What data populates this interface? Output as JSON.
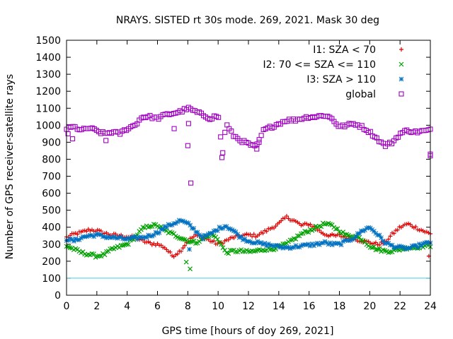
{
  "chart_data": {
    "type": "scatter",
    "title": "NRAYS. SISTED rt 30s mode. 269, 2021. Mask 30 deg",
    "xlabel": "GPS time [hours of doy 269, 2021]",
    "ylabel": "Number of GPS receiver-satellite rays",
    "xlim": [
      0,
      24
    ],
    "ylim": [
      0,
      1500
    ],
    "xticks": [
      0,
      2,
      4,
      6,
      8,
      10,
      12,
      14,
      16,
      18,
      20,
      22,
      24
    ],
    "yticks": [
      0,
      100,
      200,
      300,
      400,
      500,
      600,
      700,
      800,
      900,
      1000,
      1100,
      1200,
      1300,
      1400,
      1500
    ],
    "reference_line": {
      "y": 100,
      "color": "#40d0e0"
    },
    "legend_position": "top-right",
    "series": [
      {
        "name": "I1: SZA < 70",
        "marker": "+",
        "color": "#e00000",
        "x": [
          0,
          0.5,
          1,
          1.5,
          2,
          2.5,
          3,
          3.5,
          4,
          4.5,
          5,
          5.5,
          6,
          6.5,
          7,
          7.5,
          8,
          8.5,
          9,
          9.5,
          10,
          10.5,
          11,
          11.5,
          12,
          12.5,
          13,
          13.5,
          14,
          14.5,
          15,
          15.5,
          16,
          16.5,
          17,
          17.5,
          18,
          18.5,
          19,
          19.5,
          20,
          20.5,
          21,
          21.5,
          22,
          22.5,
          23,
          23.5,
          24
        ],
        "y": [
          340,
          360,
          370,
          385,
          380,
          365,
          355,
          350,
          345,
          340,
          320,
          305,
          300,
          280,
          230,
          260,
          320,
          350,
          340,
          320,
          300,
          320,
          340,
          350,
          355,
          350,
          370,
          395,
          420,
          460,
          440,
          410,
          420,
          390,
          360,
          350,
          350,
          340,
          330,
          320,
          310,
          300,
          310,
          360,
          400,
          420,
          400,
          380,
          360
        ]
      },
      {
        "name": "I2: 70 <= SZA <= 110",
        "marker": "x",
        "color": "#00a000",
        "x": [
          0,
          0.5,
          1,
          1.5,
          2,
          2.5,
          3,
          3.5,
          4,
          4.5,
          5,
          5.5,
          6,
          6.5,
          7,
          7.5,
          8,
          8.5,
          9,
          9.5,
          10,
          10.5,
          11,
          11.5,
          12,
          12.5,
          13,
          13.5,
          14,
          14.5,
          15,
          15.5,
          16,
          16.5,
          17,
          17.5,
          18,
          18.5,
          19,
          19.5,
          20,
          20.5,
          21,
          21.5,
          22,
          22.5,
          23,
          23.5,
          24
        ],
        "y": [
          290,
          270,
          250,
          240,
          230,
          240,
          270,
          285,
          300,
          340,
          390,
          410,
          410,
          380,
          360,
          340,
          320,
          310,
          330,
          360,
          330,
          250,
          260,
          260,
          255,
          260,
          270,
          270,
          285,
          300,
          330,
          360,
          380,
          400,
          420,
          410,
          380,
          350,
          350,
          330,
          290,
          270,
          260,
          260,
          270,
          280,
          280,
          290,
          290
        ]
      },
      {
        "name": "I3: SZA > 110",
        "marker": "*",
        "color": "#0070c0",
        "x": [
          0,
          0.5,
          1,
          1.5,
          2,
          2.5,
          3,
          3.5,
          4,
          4.5,
          5,
          5.5,
          6,
          6.5,
          7,
          7.5,
          8,
          8.5,
          9,
          9.5,
          10,
          10.5,
          11,
          11.5,
          12,
          12.5,
          13,
          13.5,
          14,
          14.5,
          15,
          15.5,
          16,
          16.5,
          17,
          17.5,
          18,
          18.5,
          19,
          19.5,
          20,
          20.5,
          21,
          21.5,
          22,
          22.5,
          23,
          23.5,
          24
        ],
        "y": [
          330,
          320,
          340,
          350,
          355,
          345,
          340,
          335,
          330,
          335,
          340,
          350,
          370,
          400,
          420,
          440,
          420,
          380,
          340,
          360,
          390,
          410,
          380,
          340,
          320,
          310,
          300,
          295,
          285,
          280,
          285,
          290,
          295,
          300,
          310,
          300,
          300,
          320,
          340,
          380,
          400,
          360,
          310,
          290,
          280,
          275,
          285,
          300,
          310
        ]
      },
      {
        "name": "global",
        "marker": "square",
        "color": "#a000c0",
        "x": [
          0,
          0.5,
          1,
          1.5,
          2,
          2.5,
          3,
          3.5,
          4,
          4.5,
          5,
          5.5,
          6,
          6.5,
          7,
          7.5,
          8,
          8.5,
          9,
          9.5,
          10,
          10.3,
          10.5,
          11,
          11.5,
          12,
          12.5,
          13,
          13.5,
          14,
          14.5,
          15,
          15.5,
          16,
          16.5,
          17,
          17.5,
          18,
          18.5,
          19,
          19.5,
          20,
          20.5,
          21,
          21.5,
          22,
          22.5,
          23,
          23.5,
          24
        ],
        "y": [
          980,
          990,
          970,
          985,
          965,
          950,
          960,
          950,
          980,
          1000,
          1050,
          1050,
          1040,
          1060,
          1070,
          1080,
          1100,
          1080,
          1060,
          1040,
          1060,
          830,
          1010,
          940,
          910,
          890,
          870,
          970,
          990,
          1010,
          1030,
          1030,
          1040,
          1050,
          1050,
          1060,
          1040,
          990,
          1000,
          1010,
          990,
          960,
          920,
          880,
          900,
          950,
          970,
          960,
          965,
          970
        ]
      }
    ],
    "outliers": {
      "global": [
        [
          0.1,
          950
        ],
        [
          0.4,
          920
        ],
        [
          2.6,
          910
        ],
        [
          7.1,
          980
        ],
        [
          8.05,
          1010
        ],
        [
          8.0,
          880
        ],
        [
          8.2,
          660
        ],
        [
          10.25,
          810
        ],
        [
          12.55,
          860
        ],
        [
          12.7,
          900
        ],
        [
          24,
          820
        ],
        [
          24,
          830
        ]
      ],
      "I2: 70 <= SZA <= 110": [
        [
          7.9,
          195
        ],
        [
          8.15,
          155
        ]
      ],
      "I3: SZA > 110": [
        [
          8.1,
          270
        ]
      ],
      "I1: SZA < 70": [
        [
          23.9,
          230
        ]
      ]
    }
  }
}
